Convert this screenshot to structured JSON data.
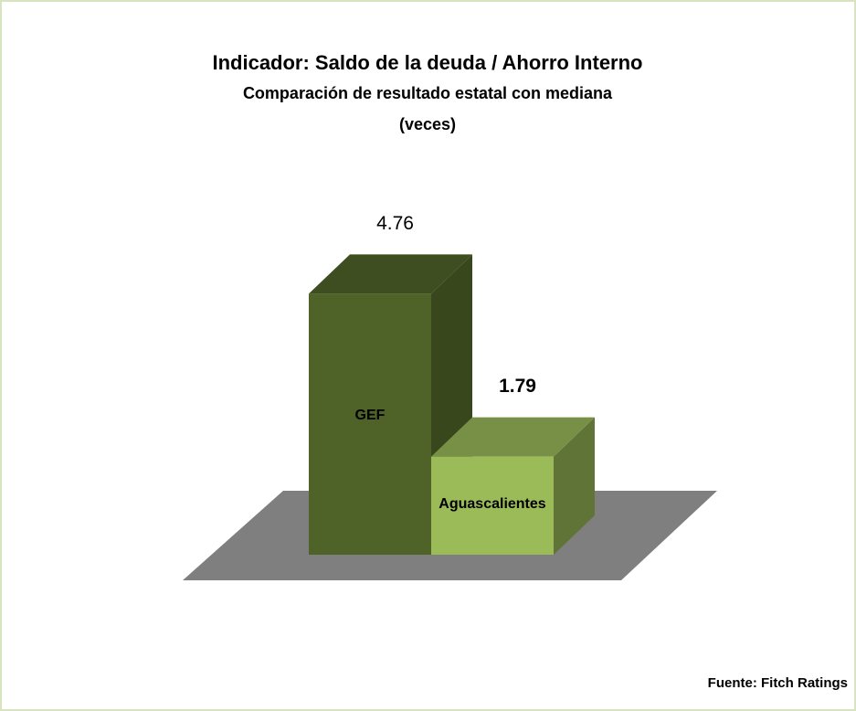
{
  "chart_data": {
    "type": "bar3d",
    "title": "Indicador: Saldo de la deuda / Ahorro Interno",
    "subtitle": "Comparación de resultado estatal con mediana",
    "unit_label": "(veces)",
    "categories": [
      "GEF",
      "Aguascalientes"
    ],
    "values": [
      4.76,
      1.79
    ],
    "colors": [
      "#4f6228",
      "#9bbb59"
    ],
    "source": "Fuente: Fitch Ratings"
  }
}
